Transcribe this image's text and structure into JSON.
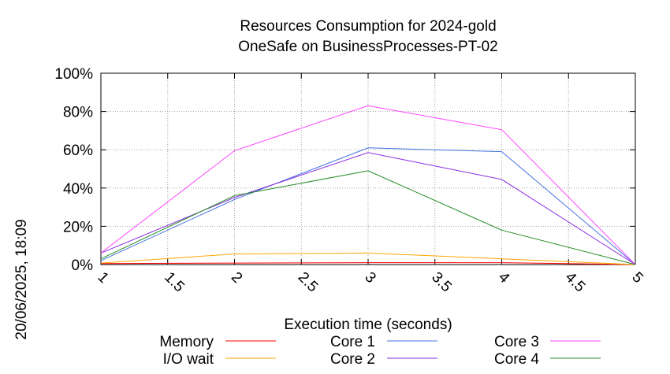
{
  "chart_data": {
    "type": "line",
    "title": "Resources Consumption for 2024-gold",
    "subtitle": "OneSafe on BusinessProcesses-PT-02",
    "xlabel": "Execution time (seconds)",
    "ylabel": "",
    "side_label": "20/06/2025, 18:09",
    "xlim": [
      1,
      5
    ],
    "ylim": [
      0,
      100
    ],
    "x_ticks": [
      1,
      1.5,
      2,
      2.5,
      3,
      3.5,
      4,
      4.5,
      5
    ],
    "x_tick_labels": [
      "1",
      "1.5",
      "2",
      "2.5",
      "3",
      "3.5",
      "4",
      "4.5",
      "5"
    ],
    "y_ticks": [
      0,
      20,
      40,
      60,
      80,
      100
    ],
    "y_tick_labels": [
      "0%",
      "20%",
      "40%",
      "60%",
      "80%",
      "100%"
    ],
    "grid": true,
    "legend_position": "bottom",
    "x": [
      1,
      2,
      3,
      4,
      5
    ],
    "series": [
      {
        "name": "Memory",
        "color": "#ff0000",
        "values": [
          0.5,
          0.8,
          1.0,
          1.0,
          0
        ]
      },
      {
        "name": "I/O wait",
        "color": "#ffa500",
        "values": [
          0.8,
          5.5,
          6.0,
          3.0,
          0
        ]
      },
      {
        "name": "Core 1",
        "color": "#4472e0",
        "values": [
          2,
          34,
          61,
          59,
          0
        ]
      },
      {
        "name": "Core 2",
        "color": "#8a2be2",
        "values": [
          6,
          35,
          58.5,
          44.5,
          0
        ]
      },
      {
        "name": "Core 3",
        "color": "#ff44ff",
        "values": [
          6,
          59.5,
          83,
          70.5,
          0
        ]
      },
      {
        "name": "Core 4",
        "color": "#228b22",
        "values": [
          3,
          36,
          49,
          18,
          0
        ]
      }
    ]
  }
}
